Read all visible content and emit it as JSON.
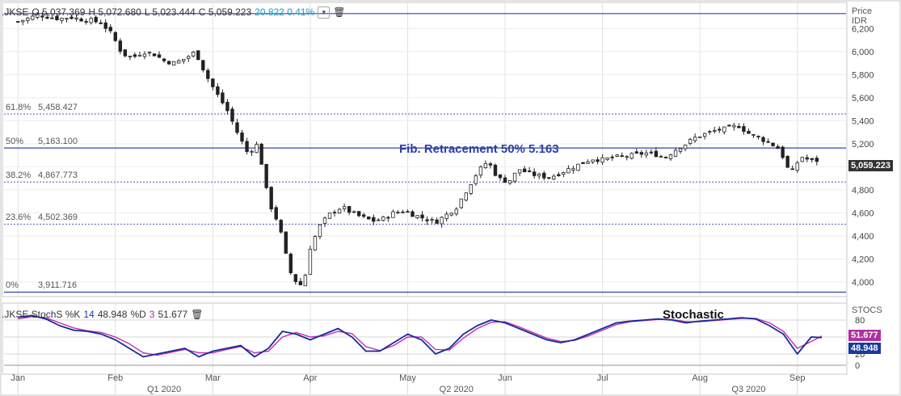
{
  "header": {
    "symbol": ".JKSE",
    "open": "O 5,037.369",
    "high": "H 5,072.680",
    "low": "L 5,023.444",
    "close": "C 5,059.223",
    "change": "20.822 0.41%"
  },
  "price_axis": {
    "title_line1": "Price",
    "title_line2": "IDR",
    "last_price": "5,059.223"
  },
  "fib_levels": [
    {
      "pct": "61.8%",
      "value": "5,458.427"
    },
    {
      "pct": "50%",
      "value": "5,163.100"
    },
    {
      "pct": "38.2%",
      "value": "4,867.773"
    },
    {
      "pct": "23.6%",
      "value": "4,502.369"
    },
    {
      "pct": "0%",
      "value": "3,911.716"
    }
  ],
  "annotations": {
    "fib": "Fib. Retracement 50%   5.163",
    "stoch": "Stochastic"
  },
  "stoch_header": {
    "label": ".JKSE StochS %K",
    "k_period": "14",
    "k_value": "48.948",
    "d_label": "%D",
    "d_period": "3",
    "d_value": "51.677"
  },
  "stoch_axis": {
    "title": "STOCS",
    "k_tag": "48.948",
    "d_tag": "51.677"
  },
  "colors": {
    "fib_line": "#3344aa",
    "k_line": "#1a2a9a",
    "d_line": "#c030b0",
    "tag_k": "#1a3a9a",
    "tag_d": "#b030a0"
  },
  "chart_data": [
    {
      "type": "candlestick",
      "title": ".JKSE",
      "ylabel": "Price IDR",
      "ylim": [
        3880,
        6420
      ],
      "y_ticks": [
        4000,
        4200,
        4400,
        4600,
        4800,
        5000,
        5200,
        5400,
        5600,
        5800,
        6000,
        6200
      ],
      "x_labels": [
        "Jan",
        "Feb",
        "Mar",
        "Apr",
        "May",
        "Jun",
        "Jul",
        "Aug",
        "Sep"
      ],
      "x_label_days": [
        0,
        28,
        56,
        84,
        112,
        140,
        168,
        196,
        224
      ],
      "quarter_labels": [
        "Q1 2020",
        "Q2 2020",
        "Q3 2020"
      ],
      "quarter_days": [
        42,
        126,
        210
      ],
      "fib_levels": [
        6330,
        5458.427,
        5163.1,
        4867.773,
        4502.369,
        3911.716
      ],
      "close_path": [
        [
          0,
          6260
        ],
        [
          3,
          6290
        ],
        [
          6,
          6320
        ],
        [
          9,
          6300
        ],
        [
          12,
          6285
        ],
        [
          15,
          6300
        ],
        [
          18,
          6280
        ],
        [
          21,
          6270
        ],
        [
          24,
          6250
        ],
        [
          27,
          6150
        ],
        [
          30,
          5980
        ],
        [
          33,
          5950
        ],
        [
          36,
          6000
        ],
        [
          39,
          5980
        ],
        [
          42,
          5920
        ],
        [
          45,
          5900
        ],
        [
          48,
          5940
        ],
        [
          51,
          6000
        ],
        [
          54,
          5800
        ],
        [
          57,
          5640
        ],
        [
          60,
          5500
        ],
        [
          63,
          5300
        ],
        [
          66,
          5120
        ],
        [
          69,
          5200
        ],
        [
          72,
          4700
        ],
        [
          75,
          4500
        ],
        [
          78,
          4100
        ],
        [
          80,
          4000
        ],
        [
          82,
          3960
        ],
        [
          84,
          4300
        ],
        [
          87,
          4500
        ],
        [
          90,
          4600
        ],
        [
          93,
          4650
        ],
        [
          96,
          4600
        ],
        [
          99,
          4560
        ],
        [
          102,
          4530
        ],
        [
          105,
          4550
        ],
        [
          108,
          4600
        ],
        [
          111,
          4620
        ],
        [
          114,
          4580
        ],
        [
          117,
          4550
        ],
        [
          120,
          4520
        ],
        [
          123,
          4580
        ],
        [
          126,
          4650
        ],
        [
          129,
          4800
        ],
        [
          132,
          4950
        ],
        [
          135,
          5050
        ],
        [
          138,
          4900
        ],
        [
          141,
          4870
        ],
        [
          144,
          4980
        ],
        [
          147,
          4940
        ],
        [
          150,
          4920
        ],
        [
          153,
          4910
        ],
        [
          156,
          4950
        ],
        [
          159,
          4990
        ],
        [
          162,
          5030
        ],
        [
          165,
          5070
        ],
        [
          168,
          5060
        ],
        [
          171,
          5080
        ],
        [
          174,
          5090
        ],
        [
          177,
          5100
        ],
        [
          180,
          5120
        ],
        [
          183,
          5110
        ],
        [
          186,
          5080
        ],
        [
          189,
          5150
        ],
        [
          192,
          5200
        ],
        [
          195,
          5260
        ],
        [
          198,
          5290
        ],
        [
          201,
          5320
        ],
        [
          204,
          5330
        ],
        [
          207,
          5360
        ],
        [
          210,
          5290
        ],
        [
          213,
          5250
        ],
        [
          216,
          5210
        ],
        [
          219,
          5150
        ],
        [
          222,
          4930
        ],
        [
          225,
          5090
        ],
        [
          228,
          5050
        ],
        [
          231,
          5059.223
        ]
      ]
    },
    {
      "type": "line",
      "title": "StochS",
      "ylim": [
        0,
        100
      ],
      "y_ticks": [
        0,
        20,
        50,
        80
      ],
      "series": [
        {
          "name": "%K",
          "x": [
            0,
            4,
            8,
            12,
            16,
            20,
            24,
            28,
            32,
            36,
            40,
            44,
            48,
            52,
            56,
            60,
            64,
            68,
            72,
            76,
            80,
            84,
            88,
            92,
            96,
            100,
            104,
            108,
            112,
            116,
            120,
            124,
            128,
            132,
            136,
            140,
            144,
            148,
            152,
            156,
            160,
            164,
            168,
            172,
            176,
            180,
            184,
            188,
            192,
            196,
            200,
            204,
            208,
            212,
            216,
            220,
            224,
            228,
            231
          ],
          "values": [
            85,
            88,
            82,
            70,
            62,
            60,
            55,
            45,
            30,
            15,
            20,
            25,
            30,
            15,
            25,
            30,
            35,
            15,
            30,
            60,
            55,
            45,
            55,
            65,
            50,
            25,
            25,
            40,
            55,
            45,
            20,
            30,
            55,
            70,
            80,
            75,
            65,
            55,
            45,
            40,
            45,
            55,
            65,
            75,
            78,
            80,
            82,
            80,
            75,
            78,
            80,
            82,
            84,
            82,
            70,
            55,
            20,
            50,
            48.948
          ]
        },
        {
          "name": "%D",
          "x": [
            0,
            4,
            8,
            12,
            16,
            20,
            24,
            28,
            32,
            36,
            40,
            44,
            48,
            52,
            56,
            60,
            64,
            68,
            72,
            76,
            80,
            84,
            88,
            92,
            96,
            100,
            104,
            108,
            112,
            116,
            120,
            124,
            128,
            132,
            136,
            140,
            144,
            148,
            152,
            156,
            160,
            164,
            168,
            172,
            176,
            180,
            184,
            188,
            192,
            196,
            200,
            204,
            208,
            212,
            216,
            220,
            224,
            228,
            231
          ],
          "values": [
            82,
            86,
            84,
            75,
            66,
            61,
            58,
            50,
            38,
            22,
            18,
            23,
            28,
            22,
            22,
            28,
            33,
            22,
            25,
            50,
            58,
            50,
            52,
            60,
            56,
            33,
            26,
            35,
            50,
            50,
            28,
            27,
            48,
            65,
            76,
            77,
            68,
            58,
            48,
            42,
            44,
            52,
            62,
            72,
            77,
            79,
            81,
            81,
            77,
            77,
            79,
            81,
            83,
            83,
            75,
            60,
            30,
            42,
            51.677
          ]
        }
      ]
    }
  ]
}
